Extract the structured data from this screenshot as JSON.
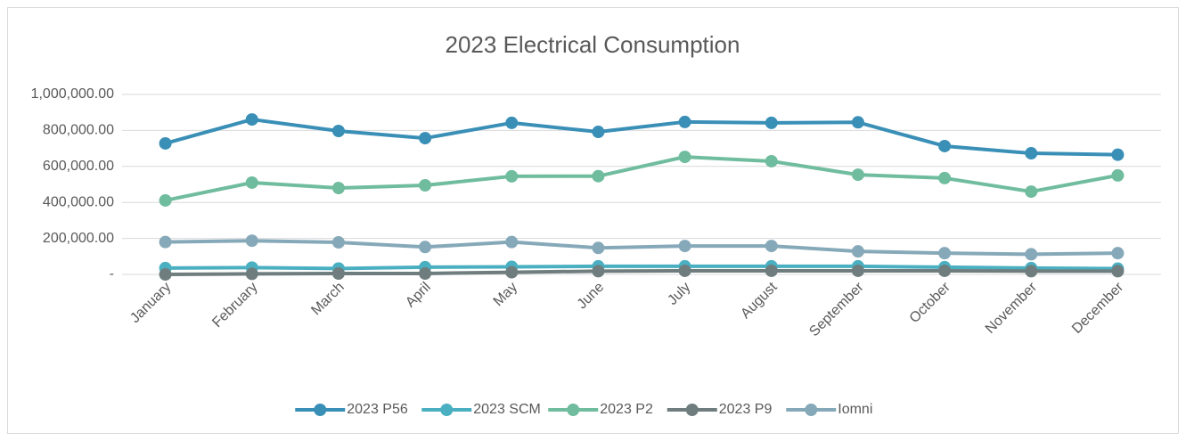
{
  "chart_data": {
    "type": "line",
    "title": "2023 Electrical Consumption",
    "categories": [
      "January",
      "February",
      "March",
      "April",
      "May",
      "June",
      "July",
      "August",
      "September",
      "October",
      "November",
      "December"
    ],
    "series": [
      {
        "name": "2023 P56",
        "color": "#3a8fb7",
        "values": [
          728000,
          861000,
          797000,
          757000,
          842000,
          792000,
          847000,
          842000,
          845000,
          713000,
          673000,
          665000
        ]
      },
      {
        "name": "2023 SCM",
        "color": "#4ab0c1",
        "values": [
          35000,
          38000,
          33000,
          40000,
          42000,
          45000,
          45000,
          45000,
          45000,
          40000,
          35000,
          32000
        ]
      },
      {
        "name": "2023 P2",
        "color": "#70bc9e",
        "values": [
          411000,
          510000,
          480000,
          495000,
          545000,
          546000,
          653000,
          629000,
          554000,
          535000,
          460000,
          550000
        ]
      },
      {
        "name": "2023 P9",
        "color": "#6f7d7e",
        "values": [
          0,
          3000,
          5000,
          5000,
          12000,
          18000,
          20000,
          20000,
          20000,
          20000,
          18000,
          18000
        ]
      },
      {
        "name": "Iomni",
        "color": "#86a9b9",
        "values": [
          180000,
          187000,
          178000,
          152000,
          180000,
          147000,
          158000,
          158000,
          128000,
          118000,
          112000,
          118000
        ]
      }
    ],
    "ylim": [
      0,
      1000000
    ],
    "yticks": [
      {
        "value": 0,
        "label": "-"
      },
      {
        "value": 200000,
        "label": "200,000.00"
      },
      {
        "value": 400000,
        "label": "400,000.00"
      },
      {
        "value": 600000,
        "label": "600,000.00"
      },
      {
        "value": 800000,
        "label": "800,000.00"
      },
      {
        "value": 1000000,
        "label": "1,000,000.00"
      }
    ],
    "grid": true,
    "legend": "bottom"
  }
}
